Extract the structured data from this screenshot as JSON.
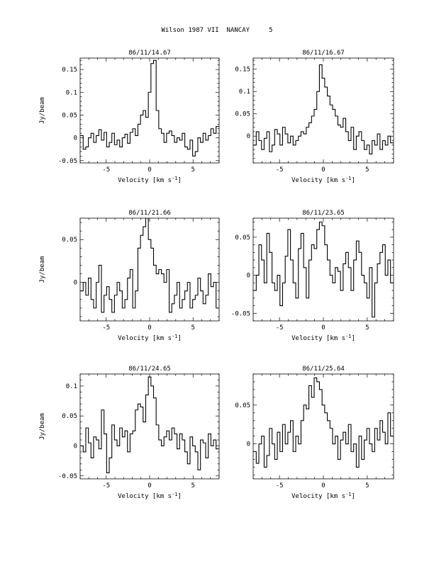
{
  "page": {
    "title": "Wilson 1987 VII  NANCAY     5"
  },
  "chart_data": [
    {
      "type": "line",
      "title": "86/11/14.67",
      "xlabel": "Velocity [km s$^{-1}$]",
      "ylabel": "Jy/beam",
      "xlim": [
        -8,
        8
      ],
      "ylim": [
        -0.055,
        0.175
      ],
      "xticks": [
        -5,
        0,
        5
      ],
      "xtick_labels": [
        "-5",
        "0",
        "5"
      ],
      "yticks": [
        -0.05,
        0,
        0.05,
        0.1,
        0.15
      ],
      "ytick_labels": [
        "-0.05",
        "0",
        "0.05",
        "0.1",
        "0.15"
      ],
      "series": [
        {
          "x": [
            -7.8,
            -7.5,
            -7.2,
            -6.9,
            -6.6,
            -6.3,
            -6.0,
            -5.7,
            -5.4,
            -5.1,
            -4.8,
            -4.5,
            -4.2,
            -3.9,
            -3.6,
            -3.3,
            -3.0,
            -2.7,
            -2.4,
            -2.1,
            -1.8,
            -1.5,
            -1.2,
            -0.9,
            -0.6,
            -0.3,
            0.0,
            0.3,
            0.6,
            0.9,
            1.2,
            1.5,
            1.8,
            2.1,
            2.4,
            2.7,
            3.0,
            3.3,
            3.6,
            3.9,
            4.2,
            4.5,
            4.8,
            5.1,
            5.4,
            5.7,
            6.0,
            6.3,
            6.6,
            6.9,
            7.2,
            7.5,
            7.8
          ],
          "y": [
            0.005,
            -0.025,
            -0.02,
            0.0,
            0.01,
            -0.01,
            0.005,
            0.018,
            -0.005,
            0.012,
            -0.02,
            -0.01,
            0.01,
            -0.015,
            -0.005,
            -0.02,
            0.0,
            0.008,
            -0.012,
            0.012,
            0.02,
            0.005,
            0.03,
            0.05,
            0.06,
            0.045,
            0.1,
            0.163,
            0.17,
            0.06,
            0.02,
            0.01,
            -0.01,
            0.01,
            0.015,
            0.005,
            -0.01,
            0.0,
            -0.005,
            0.01,
            -0.02,
            -0.025,
            -0.005,
            -0.04,
            -0.03,
            0.0,
            -0.01,
            0.01,
            -0.005,
            0.005,
            0.02,
            0.01,
            0.025
          ]
        }
      ]
    },
    {
      "type": "line",
      "title": "86/11/16.67",
      "xlabel": "Velocity [km s$^{-1}$]",
      "ylabel": "",
      "xlim": [
        -8,
        8
      ],
      "ylim": [
        -0.06,
        0.175
      ],
      "xticks": [
        -5,
        0,
        5
      ],
      "xtick_labels": [
        "-5",
        "0",
        "5"
      ],
      "yticks": [
        0,
        0.05,
        0.1,
        0.15
      ],
      "ytick_labels": [
        "0",
        "0.05",
        "0.1",
        "0.15"
      ],
      "series": [
        {
          "x": [
            -7.8,
            -7.5,
            -7.2,
            -6.9,
            -6.6,
            -6.3,
            -6.0,
            -5.7,
            -5.4,
            -5.1,
            -4.8,
            -4.5,
            -4.2,
            -3.9,
            -3.6,
            -3.3,
            -3.0,
            -2.7,
            -2.4,
            -2.1,
            -1.8,
            -1.5,
            -1.2,
            -0.9,
            -0.6,
            -0.3,
            0.0,
            0.3,
            0.6,
            0.9,
            1.2,
            1.5,
            1.8,
            2.1,
            2.4,
            2.7,
            3.0,
            3.3,
            3.6,
            3.9,
            4.2,
            4.5,
            4.8,
            5.1,
            5.4,
            5.7,
            6.0,
            6.3,
            6.6,
            6.9,
            7.2,
            7.5,
            7.8
          ],
          "y": [
            -0.02,
            0.01,
            -0.01,
            -0.03,
            -0.005,
            0.01,
            -0.035,
            -0.02,
            0.015,
            0.005,
            -0.02,
            0.02,
            0.005,
            -0.015,
            0.0,
            -0.02,
            -0.01,
            0.0,
            0.01,
            0.005,
            0.02,
            0.03,
            0.045,
            0.06,
            0.1,
            0.16,
            0.13,
            0.11,
            0.09,
            0.07,
            0.06,
            0.045,
            0.025,
            0.02,
            0.04,
            0.01,
            -0.01,
            0.02,
            -0.03,
            0.0,
            0.01,
            -0.01,
            -0.03,
            -0.02,
            -0.04,
            -0.01,
            -0.02,
            0.005,
            -0.03,
            -0.01,
            -0.02,
            0.0,
            -0.015
          ]
        }
      ]
    },
    {
      "type": "line",
      "title": "86/11/21.66",
      "xlabel": "Velocity [km s$^{-1}$]",
      "ylabel": "Jy/beam",
      "xlim": [
        -8,
        8
      ],
      "ylim": [
        -0.045,
        0.075
      ],
      "xticks": [
        -5,
        0,
        5
      ],
      "xtick_labels": [
        "-5",
        "0",
        "5"
      ],
      "yticks": [
        0,
        0.05
      ],
      "ytick_labels": [
        "0",
        "0.05"
      ],
      "series": [
        {
          "x": [
            -7.8,
            -7.5,
            -7.2,
            -6.9,
            -6.6,
            -6.3,
            -6.0,
            -5.7,
            -5.4,
            -5.1,
            -4.8,
            -4.5,
            -4.2,
            -3.9,
            -3.6,
            -3.3,
            -3.0,
            -2.7,
            -2.4,
            -2.1,
            -1.8,
            -1.5,
            -1.2,
            -0.9,
            -0.6,
            -0.3,
            0.0,
            0.3,
            0.6,
            0.9,
            1.2,
            1.5,
            1.8,
            2.1,
            2.4,
            2.7,
            3.0,
            3.3,
            3.6,
            3.9,
            4.2,
            4.5,
            4.8,
            5.1,
            5.4,
            5.7,
            6.0,
            6.3,
            6.6,
            6.9,
            7.2,
            7.5,
            7.8
          ],
          "y": [
            -0.01,
            0.0,
            -0.015,
            0.005,
            -0.02,
            -0.03,
            0.0,
            0.02,
            -0.035,
            -0.015,
            -0.005,
            -0.02,
            -0.035,
            -0.015,
            0.0,
            -0.01,
            -0.03,
            -0.02,
            0.005,
            0.015,
            -0.03,
            -0.01,
            0.04,
            0.055,
            0.065,
            0.075,
            0.05,
            0.04,
            0.02,
            0.01,
            0.015,
            0.01,
            0.0,
            0.015,
            -0.035,
            -0.025,
            -0.015,
            0.0,
            -0.03,
            -0.02,
            -0.01,
            0.0,
            -0.03,
            -0.02,
            -0.015,
            0.005,
            -0.01,
            -0.025,
            -0.015,
            0.01,
            -0.005,
            0.0,
            -0.03
          ]
        }
      ]
    },
    {
      "type": "line",
      "title": "86/11/23.65",
      "xlabel": "Velocity [km s$^{-1}$]",
      "ylabel": "",
      "xlim": [
        -8,
        8
      ],
      "ylim": [
        -0.06,
        0.075
      ],
      "xticks": [
        -5,
        0,
        5
      ],
      "xtick_labels": [
        "-5",
        "0",
        "5"
      ],
      "yticks": [
        -0.05,
        0,
        0.05
      ],
      "ytick_labels": [
        "-0.05",
        "0",
        "0.05"
      ],
      "series": [
        {
          "x": [
            -7.8,
            -7.5,
            -7.2,
            -6.9,
            -6.6,
            -6.3,
            -6.0,
            -5.7,
            -5.4,
            -5.1,
            -4.8,
            -4.5,
            -4.2,
            -3.9,
            -3.6,
            -3.3,
            -3.0,
            -2.7,
            -2.4,
            -2.1,
            -1.8,
            -1.5,
            -1.2,
            -0.9,
            -0.6,
            -0.3,
            0.0,
            0.3,
            0.6,
            0.9,
            1.2,
            1.5,
            1.8,
            2.1,
            2.4,
            2.7,
            3.0,
            3.3,
            3.6,
            3.9,
            4.2,
            4.5,
            4.8,
            5.1,
            5.4,
            5.7,
            6.0,
            6.3,
            6.6,
            6.9,
            7.2,
            7.5,
            7.8
          ],
          "y": [
            -0.02,
            0.0,
            0.04,
            0.02,
            -0.01,
            0.055,
            0.03,
            -0.01,
            -0.02,
            0.0,
            -0.04,
            -0.01,
            0.025,
            0.06,
            0.02,
            -0.01,
            -0.03,
            0.035,
            0.055,
            0.01,
            -0.03,
            0.02,
            0.04,
            0.035,
            0.06,
            0.07,
            0.065,
            0.04,
            0.02,
            0.0,
            -0.01,
            0.01,
            0.005,
            -0.02,
            0.015,
            0.03,
            0.01,
            -0.02,
            0.02,
            0.045,
            0.03,
            0.0,
            -0.01,
            -0.03,
            0.01,
            -0.055,
            -0.01,
            0.015,
            0.03,
            0.04,
            0.0,
            0.02,
            -0.01
          ]
        }
      ]
    },
    {
      "type": "line",
      "title": "86/11/24.65",
      "xlabel": "Velocity [km s$^{-1}$]",
      "ylabel": "Jy/beam",
      "xlim": [
        -8,
        8
      ],
      "ylim": [
        -0.055,
        0.12
      ],
      "xticks": [
        -5,
        0,
        5
      ],
      "xtick_labels": [
        "-5",
        "0",
        "5"
      ],
      "yticks": [
        -0.05,
        0,
        0.05,
        0.1
      ],
      "ytick_labels": [
        "-0.05",
        "0",
        "0.05",
        "0.1"
      ],
      "series": [
        {
          "x": [
            -7.8,
            -7.5,
            -7.2,
            -6.9,
            -6.6,
            -6.3,
            -6.0,
            -5.7,
            -5.4,
            -5.1,
            -4.8,
            -4.5,
            -4.2,
            -3.9,
            -3.6,
            -3.3,
            -3.0,
            -2.7,
            -2.4,
            -2.1,
            -1.8,
            -1.5,
            -1.2,
            -0.9,
            -0.6,
            -0.3,
            0.0,
            0.3,
            0.6,
            0.9,
            1.2,
            1.5,
            1.8,
            2.1,
            2.4,
            2.7,
            3.0,
            3.3,
            3.6,
            3.9,
            4.2,
            4.5,
            4.8,
            5.1,
            5.4,
            5.7,
            6.0,
            6.3,
            6.6,
            6.9,
            7.2,
            7.5,
            7.8
          ],
          "y": [
            0.0,
            -0.01,
            0.03,
            0.005,
            -0.02,
            0.015,
            0.01,
            -0.005,
            0.06,
            0.02,
            -0.045,
            -0.02,
            0.035,
            0.01,
            0.0,
            0.03,
            0.015,
            0.025,
            -0.01,
            0.02,
            0.025,
            0.06,
            0.07,
            0.065,
            0.04,
            0.085,
            0.115,
            0.1,
            0.08,
            0.035,
            0.01,
            0.0,
            0.015,
            0.025,
            0.01,
            0.03,
            0.02,
            -0.005,
            0.02,
            0.01,
            -0.01,
            -0.03,
            0.015,
            0.0,
            -0.01,
            -0.04,
            0.01,
            0.005,
            -0.02,
            0.02,
            0.0,
            0.01,
            -0.005
          ]
        }
      ]
    },
    {
      "type": "line",
      "title": "86/11/25.64",
      "xlabel": "Velocity [km s$^{-1}$]",
      "ylabel": "",
      "xlim": [
        -8,
        8
      ],
      "ylim": [
        -0.045,
        0.09
      ],
      "xticks": [
        -5,
        0,
        5
      ],
      "xtick_labels": [
        "-5",
        "0",
        "5"
      ],
      "yticks": [
        0,
        0.05
      ],
      "ytick_labels": [
        "0",
        "0.05"
      ],
      "series": [
        {
          "x": [
            -7.8,
            -7.5,
            -7.2,
            -6.9,
            -6.6,
            -6.3,
            -6.0,
            -5.7,
            -5.4,
            -5.1,
            -4.8,
            -4.5,
            -4.2,
            -3.9,
            -3.6,
            -3.3,
            -3.0,
            -2.7,
            -2.4,
            -2.1,
            -1.8,
            -1.5,
            -1.2,
            -0.9,
            -0.6,
            -0.3,
            0.0,
            0.3,
            0.6,
            0.9,
            1.2,
            1.5,
            1.8,
            2.1,
            2.4,
            2.7,
            3.0,
            3.3,
            3.6,
            3.9,
            4.2,
            4.5,
            4.8,
            5.1,
            5.4,
            5.7,
            6.0,
            6.3,
            6.6,
            6.9,
            7.2,
            7.5,
            7.8
          ],
          "y": [
            -0.01,
            -0.025,
            0.0,
            0.01,
            -0.03,
            -0.015,
            0.02,
            0.0,
            -0.02,
            0.015,
            -0.01,
            0.025,
            0.0,
            0.015,
            0.03,
            -0.01,
            0.01,
            0.0,
            0.03,
            0.05,
            0.045,
            0.075,
            0.06,
            0.085,
            0.08,
            0.07,
            0.05,
            0.04,
            0.03,
            0.02,
            0.0,
            0.01,
            -0.02,
            0.005,
            0.015,
            0.0,
            0.025,
            -0.01,
            0.0,
            -0.03,
            0.01,
            -0.02,
            0.005,
            0.02,
            0.0,
            -0.01,
            0.02,
            0.005,
            0.03,
            0.015,
            0.0,
            0.04,
            0.01
          ]
        }
      ]
    }
  ]
}
